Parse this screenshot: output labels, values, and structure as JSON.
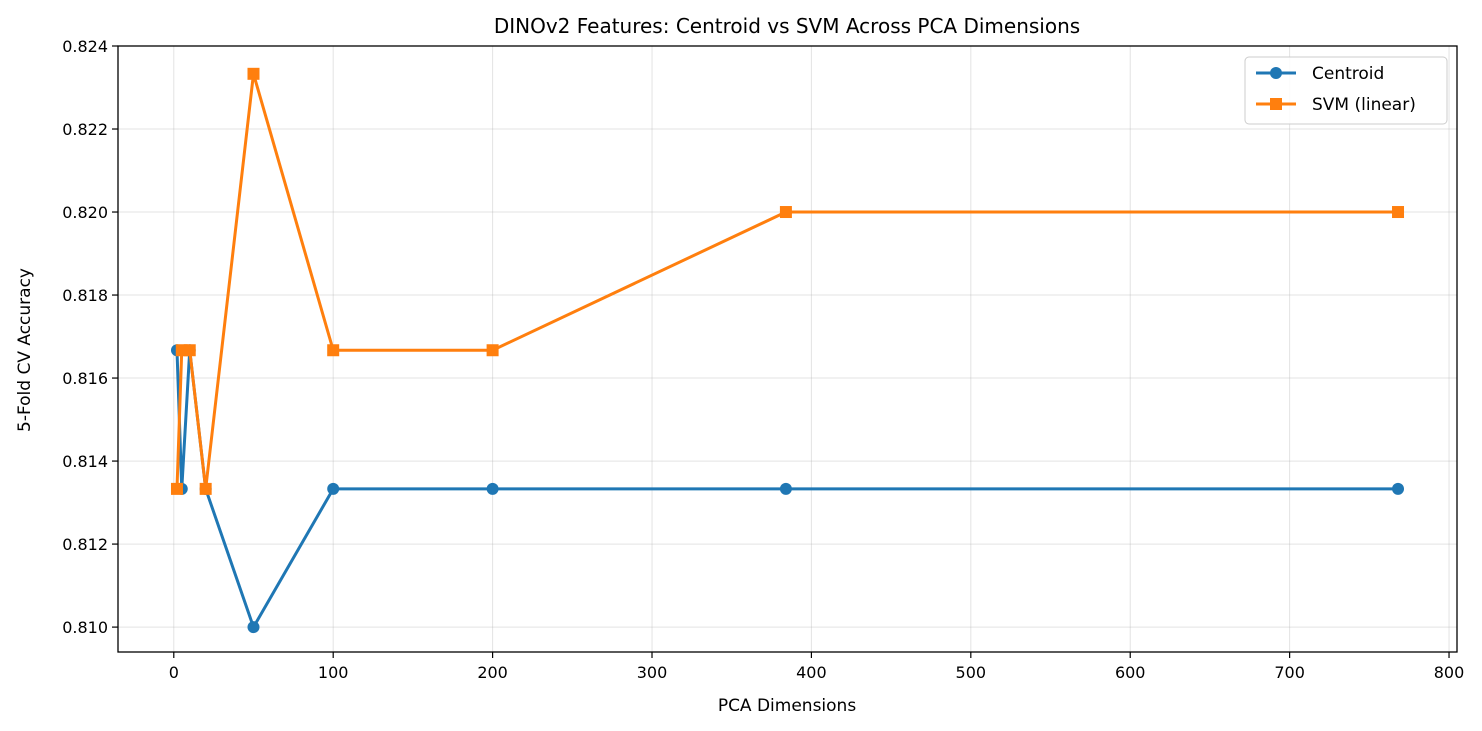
{
  "chart_data": {
    "type": "line",
    "title": "DINOv2 Features: Centroid vs SVM Across PCA Dimensions",
    "xlabel": "PCA Dimensions",
    "ylabel": "5-Fold CV Accuracy",
    "xlim": [
      -35,
      805
    ],
    "ylim": [
      0.8094,
      0.824
    ],
    "xticks": [
      0,
      100,
      200,
      300,
      400,
      500,
      600,
      700,
      800
    ],
    "yticks": [
      0.81,
      0.812,
      0.814,
      0.816,
      0.818,
      0.82,
      0.822,
      0.824
    ],
    "ytick_labels": [
      "0.810",
      "0.812",
      "0.814",
      "0.816",
      "0.818",
      "0.820",
      "0.822",
      "0.824"
    ],
    "grid": true,
    "legend_position": "top-right",
    "series": [
      {
        "name": "Centroid",
        "color": "#1f77b4",
        "marker": "circle",
        "x": [
          2,
          5,
          10,
          20,
          50,
          100,
          200,
          384,
          768
        ],
        "y": [
          0.81667,
          0.81333,
          0.81667,
          0.81333,
          0.81,
          0.81333,
          0.81333,
          0.81333,
          0.81333
        ]
      },
      {
        "name": "SVM (linear)",
        "color": "#ff7f0e",
        "marker": "square",
        "x": [
          2,
          5,
          10,
          20,
          50,
          100,
          200,
          384,
          768
        ],
        "y": [
          0.81333,
          0.81667,
          0.81667,
          0.81333,
          0.82333,
          0.81667,
          0.81667,
          0.82,
          0.82
        ]
      }
    ]
  }
}
